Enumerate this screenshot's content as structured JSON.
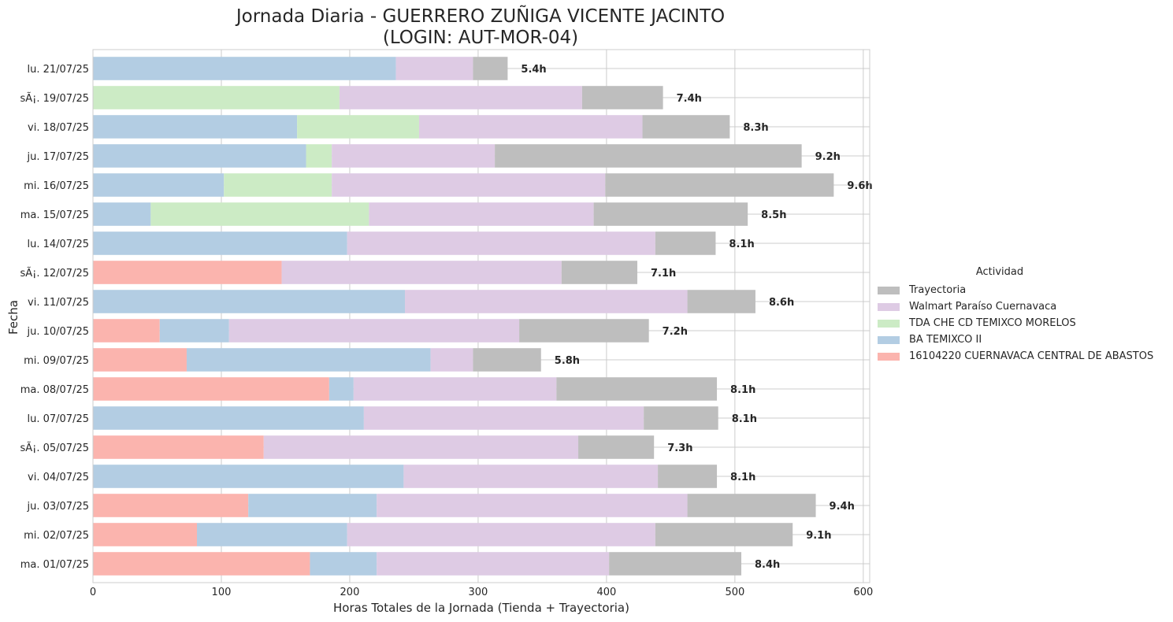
{
  "chart_data": {
    "type": "bar",
    "orientation": "horizontal",
    "stacked": true,
    "title": [
      "Jornada Diaria - GUERRERO ZUÑIGA VICENTE JACINTO",
      "(LOGIN: AUT-MOR-04)"
    ],
    "xlabel": "Horas Totales de la Jornada (Tienda + Trayectoria)",
    "ylabel": "Fecha",
    "xlim": [
      0,
      605
    ],
    "xticks": [
      0,
      100,
      200,
      300,
      400,
      500,
      600
    ],
    "grid": true,
    "legend": {
      "title": "Actividad",
      "placement": "right"
    },
    "categories": [
      "lu. 21/07/25",
      "sÃ¡. 19/07/25",
      "vi. 18/07/25",
      "ju. 17/07/25",
      "mi. 16/07/25",
      "ma. 15/07/25",
      "lu. 14/07/25",
      "sÃ¡. 12/07/25",
      "vi. 11/07/25",
      "ju. 10/07/25",
      "mi. 09/07/25",
      "ma. 08/07/25",
      "lu. 07/07/25",
      "sÃ¡. 05/07/25",
      "vi. 04/07/25",
      "ju. 03/07/25",
      "mi. 02/07/25",
      "ma. 01/07/25"
    ],
    "series": [
      {
        "name": "16104220 CUERNAVACA CENTRAL DE ABASTOS",
        "color": "#fbb4ae",
        "values": [
          0,
          0,
          0,
          0,
          0,
          0,
          0,
          147,
          0,
          52,
          73,
          184,
          0,
          133,
          0,
          121,
          81,
          169
        ]
      },
      {
        "name": "BA TEMIXCO II",
        "color": "#b3cde3",
        "values": [
          236,
          0,
          159,
          166,
          102,
          45,
          198,
          0,
          243,
          54,
          190,
          19,
          211,
          0,
          242,
          100,
          117,
          52
        ]
      },
      {
        "name": "TDA CHE CD TEMIXCO MORELOS",
        "color": "#ccebc5",
        "values": [
          0,
          192,
          95,
          20,
          84,
          170,
          0,
          0,
          0,
          0,
          0,
          0,
          0,
          0,
          0,
          0,
          0,
          0
        ]
      },
      {
        "name": "Walmart Paraíso Cuernavaca",
        "color": "#decbe4",
        "values": [
          60,
          189,
          174,
          127,
          213,
          175,
          240,
          218,
          220,
          226,
          33,
          158,
          218,
          245,
          198,
          242,
          240,
          181
        ]
      },
      {
        "name": "Trayectoria",
        "color": "#bebebe",
        "values": [
          27,
          63,
          68,
          239,
          178,
          120,
          47,
          59,
          53,
          101,
          53,
          125,
          58,
          59,
          46,
          100,
          107,
          103
        ]
      }
    ],
    "legend_order": [
      "Trayectoria",
      "Walmart Paraíso Cuernavaca",
      "TDA CHE CD TEMIXCO MORELOS",
      "BA TEMIXCO II",
      "16104220 CUERNAVACA CENTRAL DE ABASTOS"
    ],
    "total_labels": [
      "5.4h",
      "7.4h",
      "8.3h",
      "9.2h",
      "9.6h",
      "8.5h",
      "8.1h",
      "7.1h",
      "8.6h",
      "7.2h",
      "5.8h",
      "8.1h",
      "8.1h",
      "7.3h",
      "8.1h",
      "9.4h",
      "9.1h",
      "8.4h"
    ]
  }
}
